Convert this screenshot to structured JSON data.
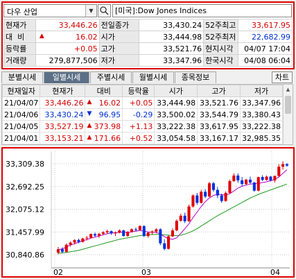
{
  "toolbar": {
    "symbol": "다우 산업",
    "index_name": "[미국]:Dow Jones Indices"
  },
  "quote": {
    "rows": [
      {
        "l1": "현재가",
        "v1": "33,446.26",
        "l2": "전일종가",
        "v2": "33,430.24",
        "l3": "52주최고",
        "v3": "33,617.95"
      },
      {
        "l1": "대  비",
        "v1": "16.02",
        "l2": "시가",
        "v2": "33,444.98",
        "l3": "52주최저",
        "v3": "22,682.99"
      },
      {
        "l1": "등락률",
        "v1": "+0.05",
        "l2": "고가",
        "v2": "33,521.76",
        "l3": "현지시각",
        "v3": "04/07 17:04"
      },
      {
        "l1": "거래량",
        "v1": "279,877,506",
        "l2": "저가",
        "v2": "33,347.96",
        "l3": "한국시각",
        "v3": "04/08 06:04"
      }
    ]
  },
  "tabs": [
    "분별시세",
    "일별시세",
    "주별시세",
    "월별시세",
    "종목정보"
  ],
  "chart_button": "차트",
  "daily": {
    "headers": [
      "현재일자",
      "현재가",
      "대비",
      "등락율",
      "시가",
      "고가",
      "저가"
    ],
    "rows": [
      {
        "date": "21/04/07",
        "close": "33,446.26",
        "dir": "up",
        "chg": "16.02",
        "pct": "+0.05",
        "open": "33,444.98",
        "high": "33,521.76",
        "low": "33,347.96"
      },
      {
        "date": "21/04/06",
        "close": "33,430.24",
        "dir": "down",
        "chg": "96.95",
        "pct": "-0.29",
        "open": "33,500.02",
        "high": "33,544.79",
        "low": "33,380.43"
      },
      {
        "date": "21/04/05",
        "close": "33,527.19",
        "dir": "up",
        "chg": "373.98",
        "pct": "+1.13",
        "open": "33,222.38",
        "high": "33,617.95",
        "low": "33,222.38"
      },
      {
        "date": "21/04/01",
        "close": "33,153.21",
        "dir": "up",
        "chg": "171.66",
        "pct": "+0.52",
        "open": "33,054.58",
        "high": "33,167.17",
        "low": "32,985.35"
      }
    ]
  },
  "chart_data": {
    "type": "candlestick",
    "yticks": [
      "33,309.38",
      "32,692.25",
      "32,075.12",
      "31,457.99",
      "30,840.86"
    ],
    "ytick_values": [
      33309.38,
      32692.25,
      32075.12,
      31457.99,
      30840.86
    ],
    "xticks": [
      "02",
      "03",
      "04"
    ],
    "colors": {
      "up": "#e00000",
      "down": "#0030e0",
      "ma_short": "#b000c8",
      "ma_long": "#1a9a1a"
    },
    "candles": [
      [
        30900,
        31050,
        30850,
        30990
      ],
      [
        30990,
        31040,
        30880,
        30920
      ],
      [
        30920,
        31150,
        30900,
        31110
      ],
      [
        31110,
        31200,
        31060,
        31170
      ],
      [
        31170,
        31260,
        31120,
        31240
      ],
      [
        31240,
        31280,
        31150,
        31190
      ],
      [
        31190,
        31300,
        31170,
        31280
      ],
      [
        31280,
        31350,
        31230,
        31300
      ],
      [
        31300,
        31420,
        31280,
        31400
      ],
      [
        31400,
        31440,
        31330,
        31360
      ],
      [
        31360,
        31430,
        31300,
        31410
      ],
      [
        31410,
        31480,
        31370,
        31450
      ],
      [
        31450,
        31520,
        31400,
        31480
      ],
      [
        31480,
        31500,
        31380,
        31420
      ],
      [
        31420,
        31470,
        31350,
        31440
      ],
      [
        31440,
        31530,
        31420,
        31500
      ],
      [
        31500,
        31520,
        31330,
        31350
      ],
      [
        31350,
        31480,
        31330,
        31460
      ],
      [
        31460,
        31560,
        31440,
        31530
      ],
      [
        31530,
        31580,
        31470,
        31510
      ],
      [
        31510,
        31640,
        31490,
        31620
      ],
      [
        31620,
        31640,
        31320,
        31350
      ],
      [
        31350,
        31460,
        31300,
        31440
      ],
      [
        31440,
        31500,
        31380,
        31470
      ],
      [
        31470,
        31560,
        31420,
        31530
      ],
      [
        31530,
        31560,
        31100,
        31150
      ],
      [
        31150,
        31260,
        30960,
        31000
      ],
      [
        31000,
        31380,
        30980,
        31340
      ],
      [
        31340,
        31560,
        31320,
        31500
      ],
      [
        31500,
        31800,
        31480,
        31760
      ],
      [
        31760,
        31950,
        31740,
        31900
      ],
      [
        31900,
        31980,
        31700,
        31750
      ],
      [
        31750,
        32200,
        31730,
        32150
      ],
      [
        32150,
        32480,
        32120,
        32450
      ],
      [
        32450,
        32520,
        32200,
        32250
      ],
      [
        32250,
        32600,
        32230,
        32550
      ],
      [
        32550,
        32620,
        32380,
        32420
      ],
      [
        32420,
        32820,
        32400,
        32780
      ],
      [
        32780,
        32820,
        32550,
        32600
      ],
      [
        32600,
        32680,
        32380,
        32450
      ],
      [
        32450,
        32500,
        32250,
        32300
      ],
      [
        32300,
        32560,
        32280,
        32520
      ],
      [
        32520,
        32880,
        32500,
        32840
      ],
      [
        32840,
        33050,
        32820,
        32990
      ],
      [
        32990,
        33050,
        32800,
        32860
      ],
      [
        32860,
        32950,
        32700,
        32760
      ],
      [
        32760,
        32900,
        32730,
        32880
      ],
      [
        32880,
        32960,
        32760,
        32800
      ],
      [
        32800,
        32820,
        32550,
        32580
      ],
      [
        32580,
        32960,
        32560,
        32950
      ],
      [
        32950,
        33000,
        32840,
        32870
      ],
      [
        32870,
        32990,
        32850,
        32960
      ],
      [
        32960,
        32980,
        32830,
        32860
      ],
      [
        32860,
        32990,
        32800,
        32980
      ],
      [
        32980,
        33300,
        32960,
        33230
      ],
      [
        33230,
        33380,
        33150,
        33300
      ],
      [
        33300,
        33330,
        33230,
        33260
      ]
    ],
    "ma_short": [
      30980,
      31000,
      31050,
      31100,
      31140,
      31180,
      31220,
      31250,
      31290,
      31320,
      31350,
      31380,
      31410,
      31430,
      31440,
      31450,
      31450,
      31450,
      31460,
      31480,
      31500,
      31480,
      31460,
      31450,
      31450,
      31400,
      31330,
      31280,
      31260,
      31300,
      31420,
      31550,
      31680,
      31850,
      32000,
      32150,
      32280,
      32380,
      32450,
      32480,
      32470,
      32460,
      32500,
      32570,
      32650,
      32700,
      32730,
      32760,
      32770,
      32780,
      32800,
      32820,
      32850,
      32880,
      32950,
      33050,
      33150
    ],
    "ma_long": [
      30880,
      30890,
      30900,
      30920,
      30940,
      30960,
      30990,
      31020,
      31050,
      31080,
      31110,
      31140,
      31170,
      31200,
      31230,
      31260,
      31280,
      31300,
      31320,
      31340,
      31360,
      31370,
      31380,
      31390,
      31390,
      31390,
      31380,
      31370,
      31360,
      31360,
      31370,
      31400,
      31440,
      31490,
      31550,
      31620,
      31690,
      31760,
      31830,
      31900,
      31960,
      32020,
      32080,
      32140,
      32200,
      32260,
      32320,
      32380,
      32430,
      32480,
      32520,
      32560,
      32600,
      32640,
      32680,
      32720,
      32760
    ]
  }
}
